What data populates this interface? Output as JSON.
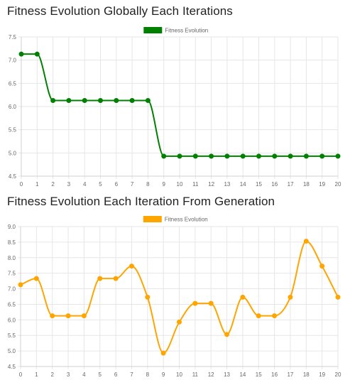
{
  "chart_data": [
    {
      "type": "line",
      "title": "Fitness Evolution Globally Each Iterations",
      "x": [
        0,
        1,
        2,
        3,
        4,
        5,
        6,
        7,
        8,
        9,
        10,
        11,
        12,
        13,
        14,
        15,
        16,
        17,
        18,
        19,
        20
      ],
      "series": [
        {
          "name": "Fitness Evolution",
          "color": "#008000",
          "values": [
            7.13,
            7.13,
            6.13,
            6.13,
            6.13,
            6.13,
            6.13,
            6.13,
            6.13,
            4.93,
            4.93,
            4.93,
            4.93,
            4.93,
            4.93,
            4.93,
            4.93,
            4.93,
            4.93,
            4.93,
            4.93
          ]
        }
      ],
      "ylim": [
        4.5,
        7.5
      ],
      "yticks": [
        "4.5",
        "5.0",
        "5.5",
        "6.0",
        "6.5",
        "7.0",
        "7.5"
      ],
      "legend_position": "top-center",
      "grid": true
    },
    {
      "type": "line",
      "title": "Fitness Evolution Each Iteration From Generation",
      "x": [
        0,
        1,
        2,
        3,
        4,
        5,
        6,
        7,
        8,
        9,
        10,
        11,
        12,
        13,
        14,
        15,
        16,
        17,
        18,
        19,
        20
      ],
      "series": [
        {
          "name": "Fitness Evolution",
          "color": "#FFA500",
          "values": [
            7.13,
            7.33,
            6.13,
            6.13,
            6.13,
            7.33,
            7.33,
            7.73,
            6.73,
            4.93,
            5.93,
            6.53,
            6.53,
            5.53,
            6.73,
            6.13,
            6.13,
            6.73,
            8.53,
            7.73,
            6.73
          ]
        }
      ],
      "ylim": [
        4.5,
        9.0
      ],
      "yticks": [
        "4.5",
        "5.0",
        "5.5",
        "6.0",
        "6.5",
        "7.0",
        "7.5",
        "8.0",
        "8.5",
        "9.0"
      ],
      "legend_position": "top-center",
      "grid": true
    }
  ]
}
